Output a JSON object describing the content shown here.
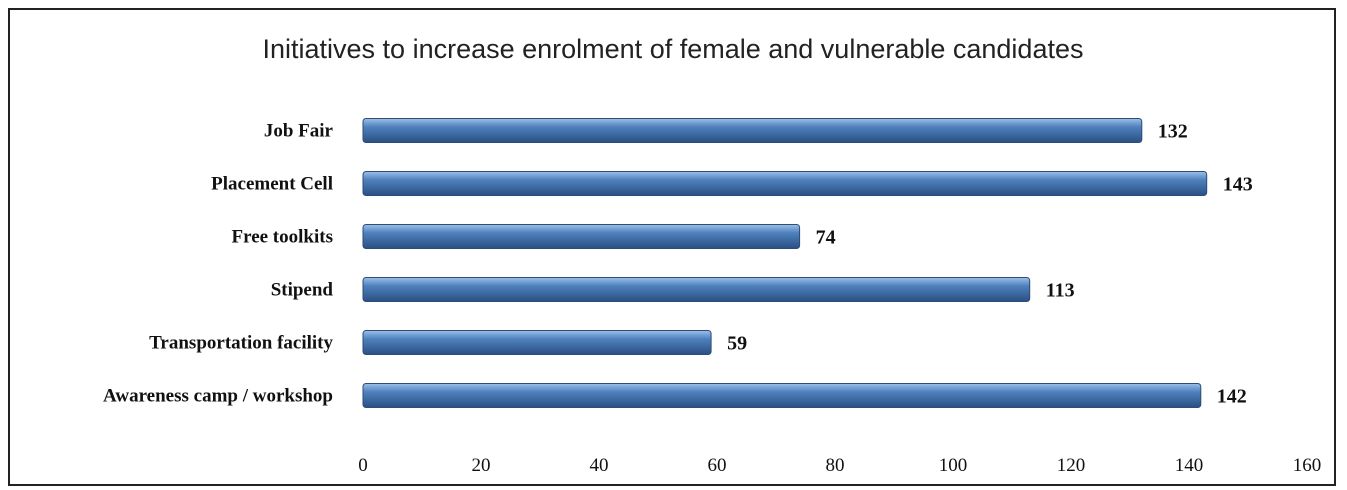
{
  "chart_data": {
    "type": "bar",
    "orientation": "horizontal",
    "title": "Initiatives to increase enrolment of female and vulnerable candidates",
    "categories": [
      "Job Fair",
      "Placement Cell",
      "Free toolkits",
      "Stipend",
      "Transportation facility",
      "Awareness camp / workshop"
    ],
    "values": [
      132,
      143,
      74,
      113,
      59,
      142
    ],
    "xlim": [
      0,
      160
    ],
    "xticks": [
      "0",
      "20",
      "40",
      "60",
      "80",
      "100",
      "120",
      "140",
      "160"
    ],
    "grid": false,
    "legend": "none",
    "bar_color": "#4f81bd"
  }
}
